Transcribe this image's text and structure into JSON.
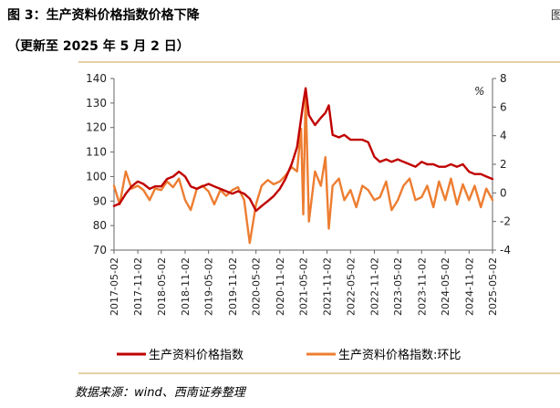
{
  "figure": {
    "title": "图 3：生产资料价格指数价格下降",
    "subtitle": "（更新至 2025 年 5 月 2 日）",
    "source": "数据来源：wind、西南证券整理",
    "edge_glyph": "图"
  },
  "chart_data": {
    "type": "line",
    "title": "图 3：生产资料价格指数价格下降",
    "subtitle": "（更新至 2025 年 5 月 2 日）",
    "xlabel": "",
    "ylabel": "",
    "y2label": "%",
    "ylim": [
      70,
      140
    ],
    "y2lim": [
      -4,
      8
    ],
    "yticks": [
      70,
      80,
      90,
      100,
      110,
      120,
      130,
      140
    ],
    "y2ticks": [
      -4,
      -2,
      0,
      2,
      4,
      6,
      8
    ],
    "xticks": [
      "2017-05-02",
      "2017-11-02",
      "2018-05-02",
      "2018-11-02",
      "2019-05-02",
      "2019-11-02",
      "2020-05-02",
      "2020-11-02",
      "2021-05-02",
      "2021-11-02",
      "2022-05-02",
      "2022-11-02",
      "2023-05-02",
      "2023-11-02",
      "2024-05-02",
      "2024-11-02",
      "2025-05-02"
    ],
    "xrange": [
      "2017-05-02",
      "2025-05-02"
    ],
    "grid": false,
    "legend_position": "bottom",
    "colors": {
      "primary": "#c00000",
      "secondary": "#ed7d31",
      "divider": "#c8a24a"
    },
    "series": [
      {
        "name": "生产资料价格指数",
        "axis": "left",
        "color": "#c00000",
        "x": [
          "2017-05-02",
          "2017-06-15",
          "2017-08-01",
          "2017-09-15",
          "2017-11-02",
          "2017-12-15",
          "2018-02-01",
          "2018-03-15",
          "2018-05-02",
          "2018-06-15",
          "2018-08-01",
          "2018-09-15",
          "2018-11-02",
          "2018-12-15",
          "2019-02-01",
          "2019-03-15",
          "2019-05-02",
          "2019-06-15",
          "2019-08-01",
          "2019-09-15",
          "2019-11-02",
          "2019-12-15",
          "2020-02-01",
          "2020-03-15",
          "2020-05-02",
          "2020-06-15",
          "2020-08-01",
          "2020-09-15",
          "2020-11-02",
          "2020-12-15",
          "2021-02-01",
          "2021-03-15",
          "2021-05-02",
          "2021-05-20",
          "2021-06-15",
          "2021-08-01",
          "2021-09-15",
          "2021-10-20",
          "2021-11-15",
          "2021-12-15",
          "2022-02-01",
          "2022-03-15",
          "2022-05-02",
          "2022-06-15",
          "2022-08-01",
          "2022-09-15",
          "2022-11-02",
          "2022-12-15",
          "2023-02-01",
          "2023-03-15",
          "2023-05-02",
          "2023-06-15",
          "2023-08-01",
          "2023-09-15",
          "2023-11-02",
          "2023-12-15",
          "2024-02-01",
          "2024-03-15",
          "2024-05-02",
          "2024-06-15",
          "2024-08-01",
          "2024-09-15",
          "2024-11-02",
          "2024-12-15",
          "2025-02-01",
          "2025-03-15",
          "2025-05-02"
        ],
        "values": [
          88,
          89,
          93,
          96,
          98,
          97,
          95,
          96,
          96,
          99,
          100,
          102,
          100,
          96,
          95,
          96,
          97,
          96,
          95,
          94,
          93,
          94,
          93,
          91,
          86,
          88,
          90,
          92,
          95,
          99,
          105,
          112,
          130,
          136,
          125,
          121,
          124,
          126,
          129,
          117,
          116,
          117,
          115,
          115,
          115,
          114,
          108,
          106,
          107,
          106,
          107,
          106,
          105,
          104,
          106,
          105,
          105,
          104,
          104,
          105,
          104,
          105,
          102,
          101,
          101,
          100,
          99
        ]
      },
      {
        "name": "生产资料价格指数:环比",
        "axis": "right",
        "color": "#ed7d31",
        "x": [
          "2017-05-02",
          "2017-06-15",
          "2017-08-01",
          "2017-09-15",
          "2017-11-02",
          "2017-12-15",
          "2018-02-01",
          "2018-03-15",
          "2018-05-02",
          "2018-06-15",
          "2018-08-01",
          "2018-09-15",
          "2018-11-02",
          "2018-12-15",
          "2019-02-01",
          "2019-03-15",
          "2019-05-02",
          "2019-06-15",
          "2019-08-01",
          "2019-09-15",
          "2019-11-02",
          "2019-12-15",
          "2020-02-01",
          "2020-03-15",
          "2020-05-02",
          "2020-06-15",
          "2020-08-01",
          "2020-09-15",
          "2020-11-02",
          "2020-12-15",
          "2021-02-01",
          "2021-03-15",
          "2021-04-15",
          "2021-05-02",
          "2021-05-20",
          "2021-06-15",
          "2021-08-01",
          "2021-09-15",
          "2021-10-20",
          "2021-11-15",
          "2021-12-15",
          "2022-02-01",
          "2022-03-15",
          "2022-05-02",
          "2022-06-15",
          "2022-08-01",
          "2022-09-15",
          "2022-11-02",
          "2022-12-15",
          "2023-02-01",
          "2023-03-15",
          "2023-05-02",
          "2023-06-15",
          "2023-08-01",
          "2023-09-15",
          "2023-11-02",
          "2023-12-15",
          "2024-02-01",
          "2024-03-15",
          "2024-05-02",
          "2024-06-15",
          "2024-08-01",
          "2024-09-15",
          "2024-11-02",
          "2024-12-15",
          "2025-02-01",
          "2025-03-15",
          "2025-05-02"
        ],
        "values": [
          0.5,
          -0.8,
          1.5,
          0.3,
          0.5,
          0.2,
          -0.5,
          0.3,
          0.2,
          0.8,
          0.4,
          1.0,
          -0.5,
          -1.2,
          0.3,
          0.5,
          0.1,
          -0.8,
          0.2,
          -0.2,
          0.2,
          0.4,
          -0.5,
          -3.5,
          -0.8,
          0.5,
          0.9,
          0.6,
          0.8,
          1.2,
          1.8,
          1.5,
          4.5,
          -1.5,
          7.0,
          -2.0,
          1.5,
          0.5,
          2.5,
          -2.5,
          0.5,
          1.0,
          -0.5,
          0.2,
          -1.0,
          0.5,
          0.2,
          -0.5,
          -0.3,
          0.8,
          -1.2,
          -0.5,
          0.5,
          1.0,
          -0.5,
          -0.3,
          0.5,
          -1.0,
          0.8,
          -0.5,
          1.0,
          -0.8,
          0.6,
          -0.5,
          0.5,
          -1.0,
          0.3,
          -0.5
        ]
      }
    ]
  }
}
